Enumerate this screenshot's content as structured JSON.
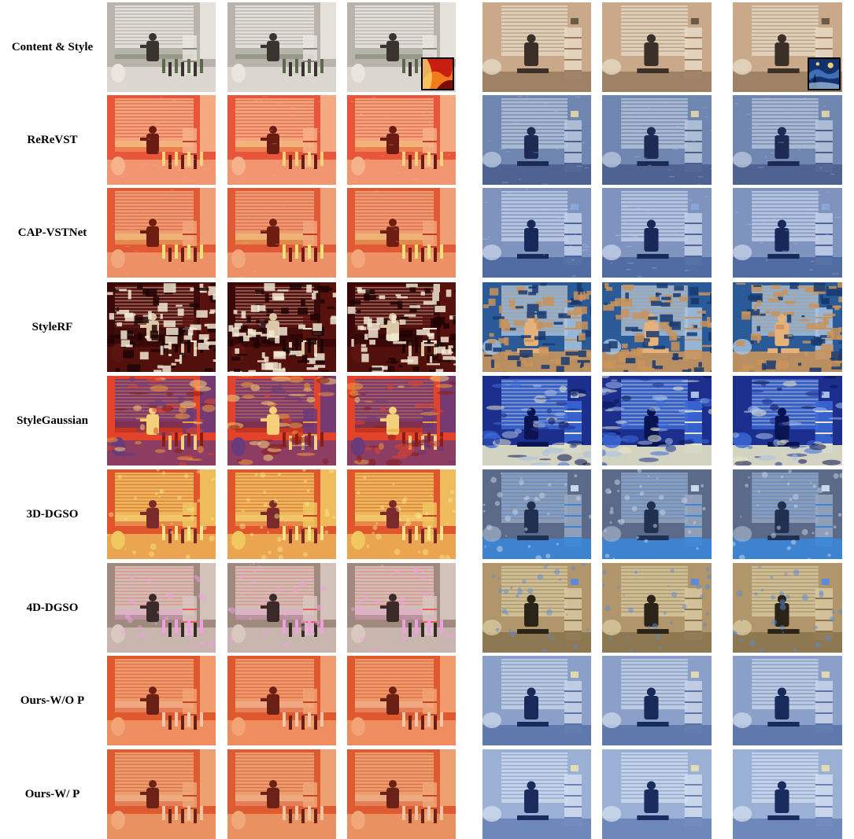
{
  "figure": {
    "rows": [
      {
        "label": "Content & Style",
        "style": "content"
      },
      {
        "label": "ReReVST",
        "style": "rerevst"
      },
      {
        "label": "CAP-VSTNet",
        "style": "capvst"
      },
      {
        "label": "StyleRF",
        "style": "stylerf"
      },
      {
        "label": "StyleGaussian",
        "style": "stylegaussian"
      },
      {
        "label": "3D-DGSO",
        "style": "dgso3d"
      },
      {
        "label": "4D-DGSO",
        "style": "dgso4d"
      },
      {
        "label": "Ours-W/O P",
        "style": "ours_wop"
      },
      {
        "label": "Ours-W/ P",
        "style": "ours_wp"
      }
    ],
    "scenes": [
      "scene-a-red-style",
      "scene-b-blue-style"
    ],
    "style_images": [
      {
        "name": "red-floral-painting",
        "colors": [
          "#c81e10",
          "#f27a1a",
          "#f7d36b",
          "#7a0c07"
        ]
      },
      {
        "name": "starry-night-painting",
        "colors": [
          "#14306e",
          "#3e6fb3",
          "#a9c7e6",
          "#e8d36a"
        ]
      }
    ],
    "palettes": {
      "content": {
        "a": [
          "#b9b3ab",
          "#8e8880",
          "#e9e6e0",
          "#3a3430",
          "#5b6a4a"
        ],
        "b": [
          "#c9a98a",
          "#9a7c60",
          "#e6d9c4",
          "#3b3028",
          "#6a5a48"
        ]
      },
      "rerevst": {
        "a": [
          "#e8553a",
          "#c83a24",
          "#f6b28a",
          "#6a1c12",
          "#f7d27a"
        ],
        "b": [
          "#6f86b0",
          "#4a5f8e",
          "#b9c6dc",
          "#1c2a54",
          "#d9d0a8"
        ]
      },
      "capvst": {
        "a": [
          "#e25a35",
          "#c03b22",
          "#f2a67c",
          "#6e1d10",
          "#e8e37a"
        ],
        "b": [
          "#7e94bf",
          "#4d66a0",
          "#c4d0e8",
          "#182858",
          "#8aa6d8"
        ]
      },
      "stylerf": {
        "a": [
          "#3a0808",
          "#f1e7d2",
          "#5c1410",
          "#d9c7a8",
          "#200404"
        ],
        "b": [
          "#2a5b98",
          "#c9935a",
          "#a9c6e2",
          "#e6b27a",
          "#173a70"
        ]
      },
      "stylegaussian": {
        "a": [
          "#e2432a",
          "#f29a3a",
          "#6a3a7a",
          "#f5d07a",
          "#8a1c12"
        ],
        "b": [
          "#1c2f8e",
          "#e8e6c8",
          "#3c6ad8",
          "#0a1450",
          "#a8c0e8"
        ]
      },
      "dgso3d": {
        "a": [
          "#e0552c",
          "#c8402a",
          "#f0c860",
          "#7a2a2a",
          "#f6e48a"
        ],
        "b": [
          "#5a6a88",
          "#3a86d8",
          "#9aa8c0",
          "#203050",
          "#c8d8e8"
        ]
      },
      "dgso4d": {
        "a": [
          "#a08a80",
          "#f05a5a",
          "#d8c8c0",
          "#3a2a2a",
          "#f0a0e0"
        ],
        "b": [
          "#b0966a",
          "#8a7450",
          "#d8c8a0",
          "#2a2418",
          "#5a8ad8"
        ]
      },
      "ours_wop": {
        "a": [
          "#e0582e",
          "#c84424",
          "#f2a476",
          "#6a2014",
          "#f0c8a8"
        ],
        "b": [
          "#8aa0c8",
          "#5a74a8",
          "#c8d4e8",
          "#182a5a",
          "#e0d8b0"
        ]
      },
      "ours_wp": {
        "a": [
          "#de5a30",
          "#c64626",
          "#f0a878",
          "#6c2216",
          "#eec6a4"
        ],
        "b": [
          "#9ab0d4",
          "#6a84b8",
          "#d0dcee",
          "#1a2c5e",
          "#e4dcb4"
        ]
      }
    }
  }
}
